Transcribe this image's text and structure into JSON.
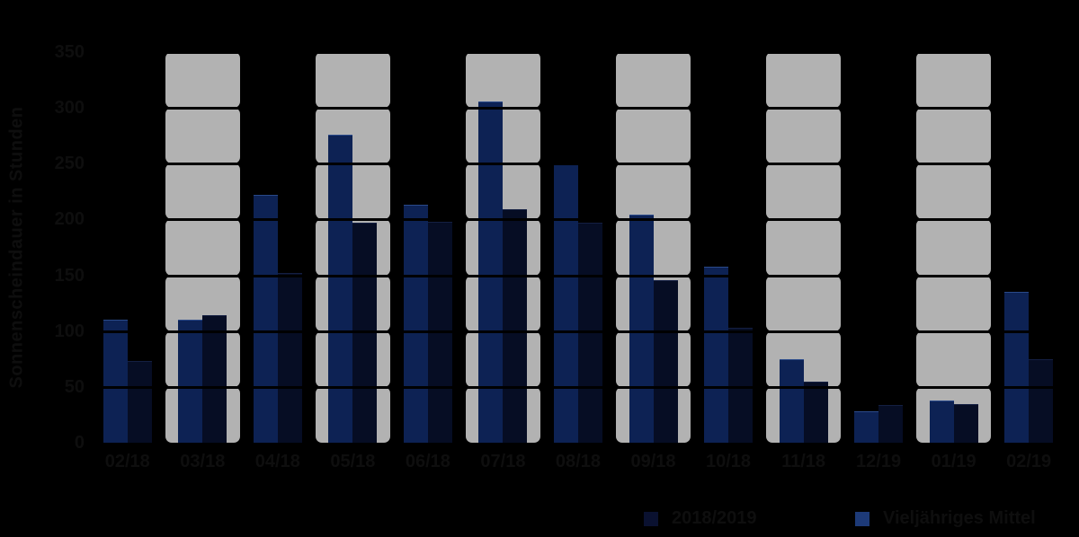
{
  "figure": {
    "background_color": "#000000",
    "text_color": "#0e0e0e",
    "band_color": "#b2b2b2",
    "gridline_color": "#000000"
  },
  "chart_data": {
    "type": "bar",
    "title": "",
    "xlabel": "",
    "ylabel": "Sonnenscheindauer in Stunden",
    "ylim": [
      0,
      350
    ],
    "yticks": [
      0,
      50,
      100,
      150,
      200,
      250,
      300,
      350
    ],
    "grid": "horizontal black lines every 50, drawn over bars; alternating months have gray background bands of rounded segments",
    "legend_position": "bottom-right",
    "categories": [
      "02/18",
      "03/18",
      "04/18",
      "05/18",
      "06/18",
      "07/18",
      "08/18",
      "09/18",
      "10/18",
      "11/18",
      "12/19",
      "01/19",
      "02/19"
    ],
    "shaded_category_indices": [
      1,
      3,
      5,
      7,
      9,
      11
    ],
    "band_color": "#b2b2b2",
    "series": [
      {
        "name": "2018/2019",
        "color": "#060d24",
        "border_color": "#141f42",
        "legend_swatch_color": "#0a1130",
        "bar_position": "right",
        "values": [
          73,
          114,
          152,
          197,
          198,
          209,
          197,
          146,
          103,
          55,
          34,
          35,
          75
        ]
      },
      {
        "name": "Vieljähriges Mittel",
        "color": "#0d2254",
        "border_color": "#2a4a8a",
        "legend_swatch_color": "#1d3a78",
        "bar_position": "left",
        "values": [
          110,
          110,
          222,
          276,
          213,
          306,
          250,
          204,
          158,
          75,
          28,
          38,
          135
        ]
      }
    ]
  }
}
